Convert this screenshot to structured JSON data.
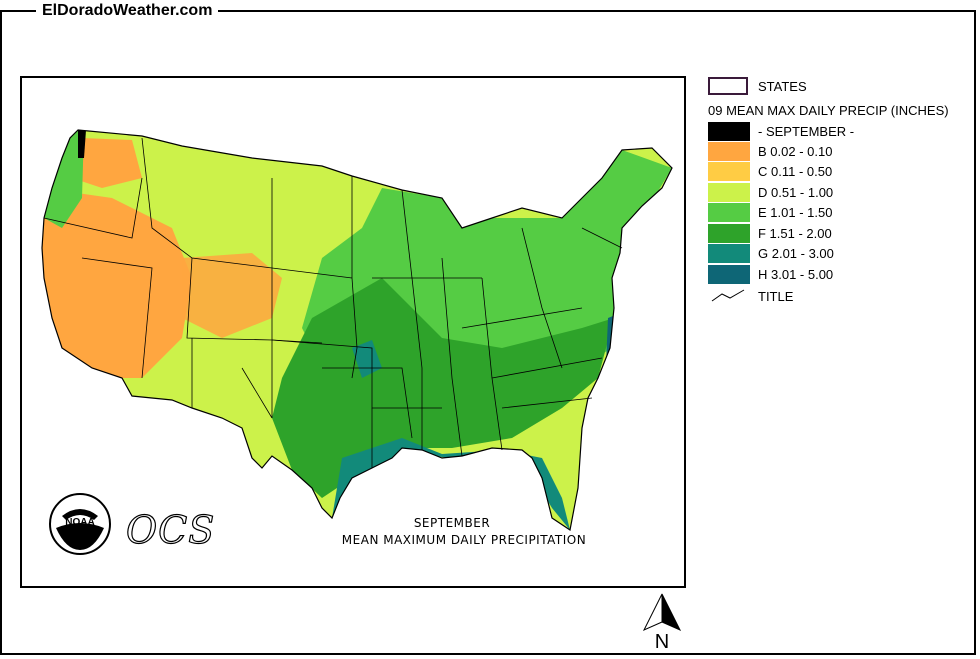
{
  "site": {
    "title": "ElDoradoWeather.com"
  },
  "legend": {
    "states_label": "STATES",
    "header": "09 MEAN MAX DAILY PRECIP (INCHES)",
    "month_label": "- SEPTEMBER -",
    "title_label": "TITLE",
    "items": [
      {
        "label": "B 0.02 - 0.10",
        "color": "#FFA640"
      },
      {
        "label": "C 0.11 - 0.50",
        "color": "#FFCC44"
      },
      {
        "label": "D 0.51 - 1.00",
        "color": "#CCF24A"
      },
      {
        "label": "E 1.01 - 1.50",
        "color": "#55CC44"
      },
      {
        "label": "F 1.51 - 2.00",
        "color": "#2EA32A"
      },
      {
        "label": "G 2.01 - 3.00",
        "color": "#128A7A"
      },
      {
        "label": "H 3.01 - 5.00",
        "color": "#0E6676"
      }
    ],
    "month_color": "#000000"
  },
  "map": {
    "caption_line1": "SEPTEMBER",
    "caption_line2": "MEAN MAXIMUM DAILY PRECIPITATION",
    "logo_noaa": "NOAA",
    "logo_ocs": "OCS",
    "north_label": "N"
  }
}
